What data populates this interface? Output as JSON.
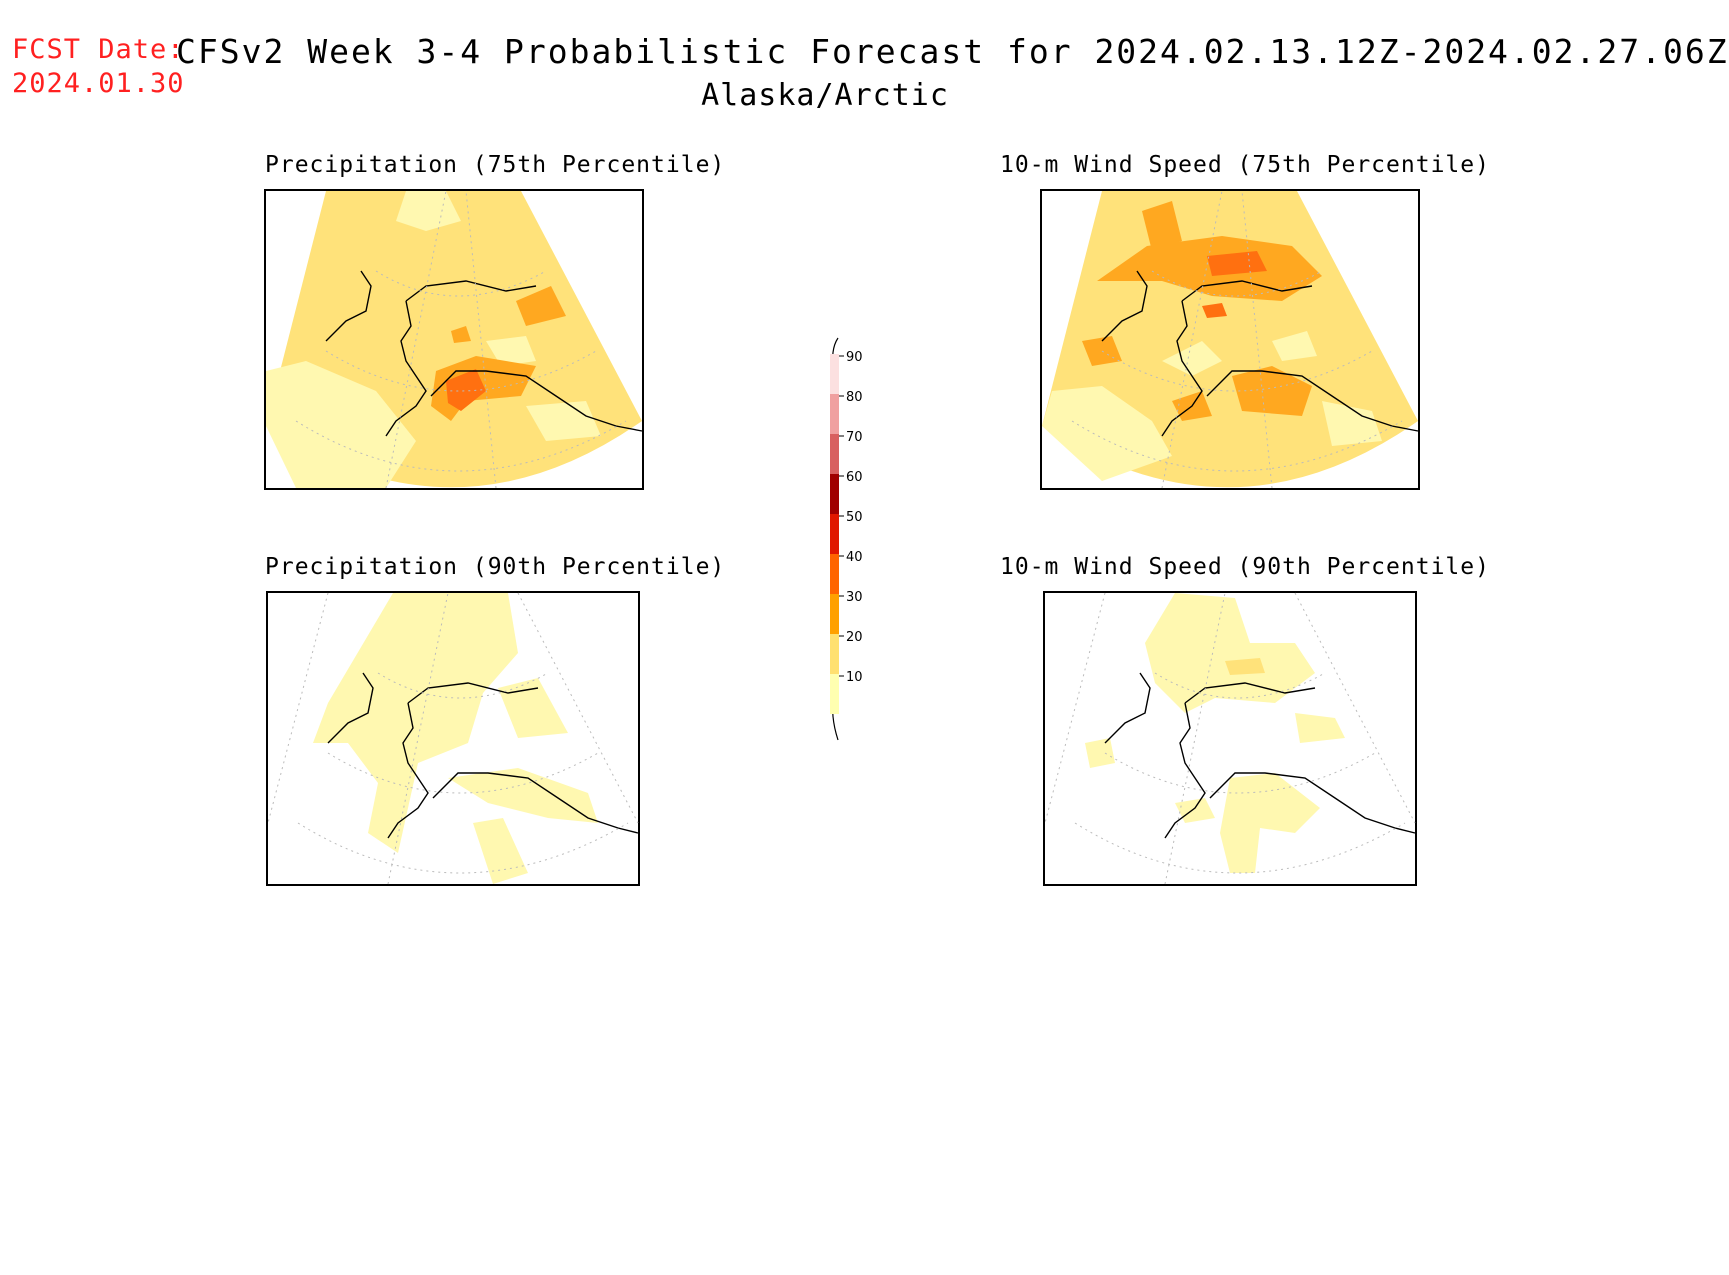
{
  "header": {
    "fcst_label": "FCST Date:",
    "fcst_date": "2024.01.30",
    "title": "CFSv2 Week 3-4 Probabilistic Forecast for 2024.02.13.12Z-2024.02.27.06Z",
    "region": "Alaska/Arctic"
  },
  "panels": [
    {
      "title": "Precipitation (75th Percentile)"
    },
    {
      "title": "10-m Wind Speed (75th Percentile)"
    },
    {
      "title": "Precipitation (90th Percentile)"
    },
    {
      "title": "10-m Wind Speed (90th Percentile)"
    }
  ],
  "colorbar": {
    "labels": [
      "90",
      "80",
      "70",
      "60",
      "50",
      "40",
      "30",
      "20",
      "10"
    ],
    "colors": [
      "#fce0e0",
      "#f0a0a0",
      "#d86060",
      "#a00000",
      "#e01800",
      "#ff6400",
      "#ffa000",
      "#ffe070",
      "#ffffb0"
    ]
  },
  "colors": {
    "lvl10": "#fff8b0",
    "lvl20": "#ffe27a",
    "lvl30": "#ffa820",
    "lvl40": "#ff7010",
    "coast": "#000000",
    "fcst_red": "#ff2020"
  }
}
